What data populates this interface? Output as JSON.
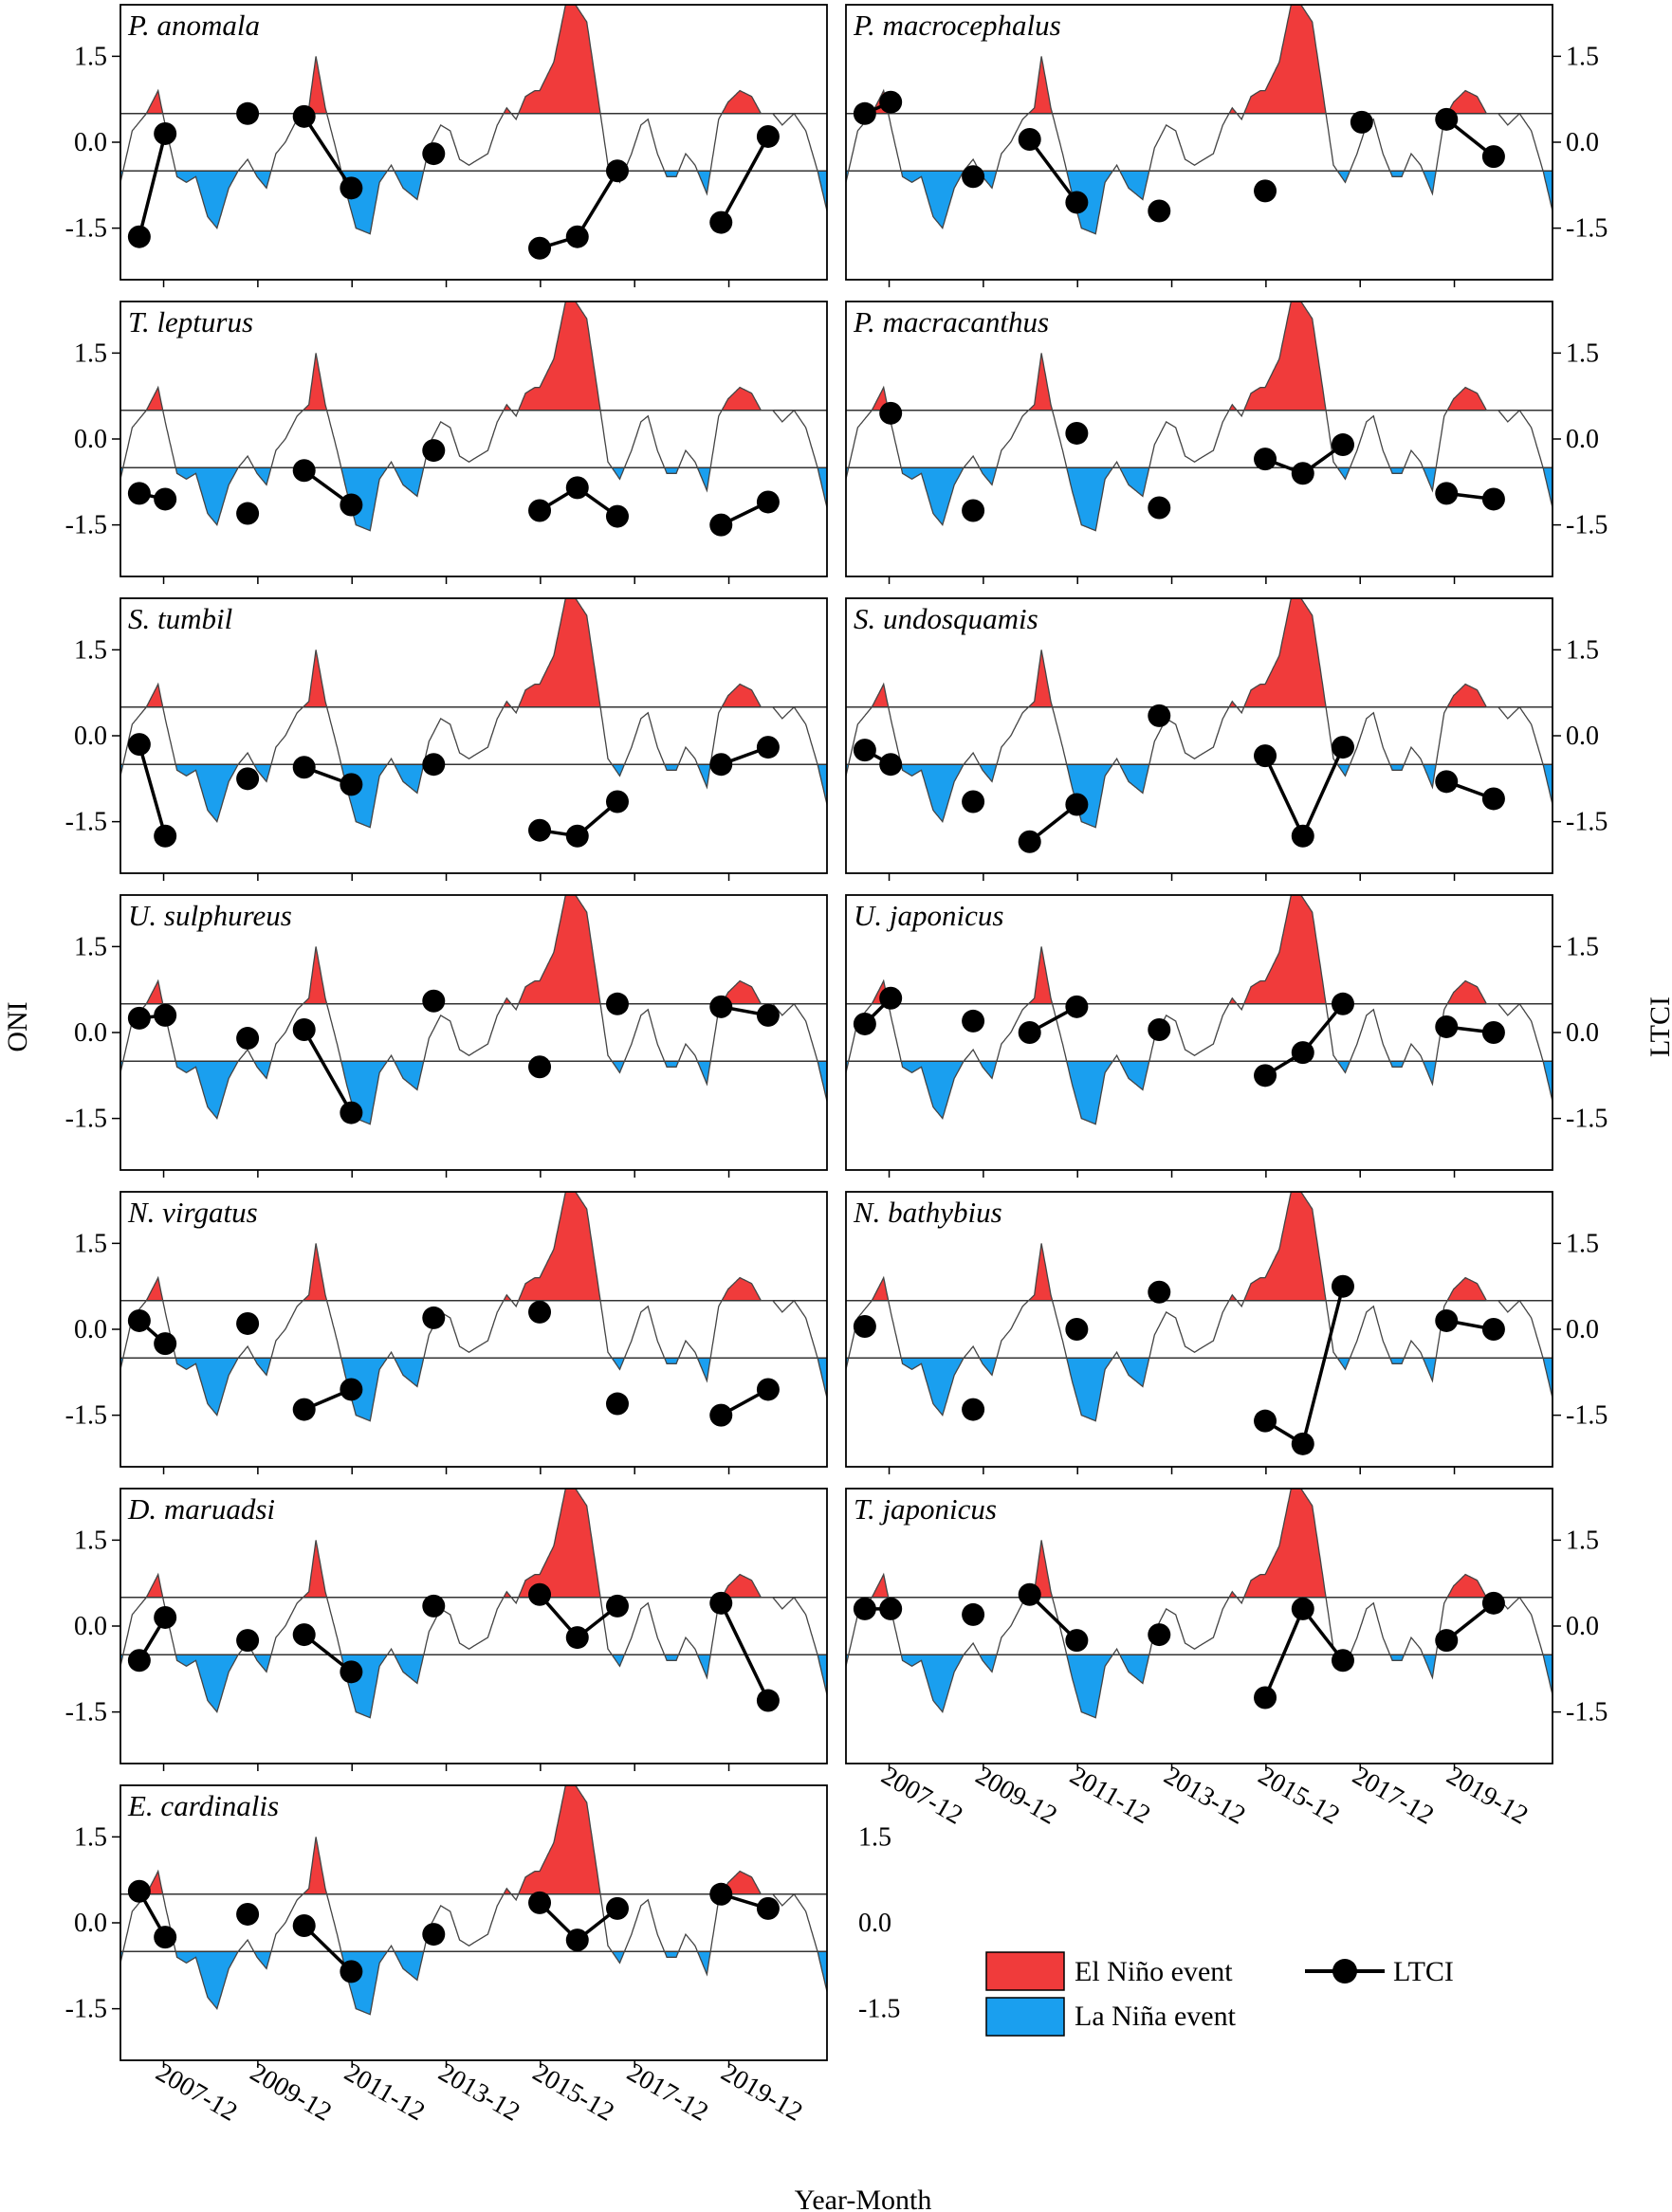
{
  "figure": {
    "y_axis_left_title": "ONI",
    "y_axis_right_title": "LTCI",
    "x_axis_title": "Year-Month",
    "colors": {
      "el_nino": "#f03b3b",
      "la_nina": "#1a9fef",
      "oni_line": "#444444",
      "ltci": "#000000",
      "frame": "#000000"
    },
    "legend": {
      "el_nino_label": "El Niño event",
      "la_nina_label": "La Niña event",
      "ltci_label": "LTCI"
    }
  },
  "chart_data": {
    "type": "line",
    "ylim": [
      -2.4,
      2.4
    ],
    "ylim_ltci": [
      -2.4,
      2.4
    ],
    "oni_thresholds": [
      0.5,
      -0.5
    ],
    "y_ticks": [
      "1.5",
      "0.0",
      "-1.5"
    ],
    "y_tick_values": [
      1.5,
      0.0,
      -1.5
    ],
    "x_ticks": [
      "2007-12",
      "2009-12",
      "2011-12",
      "2013-12",
      "2015-12",
      "2017-12",
      "2019-12"
    ],
    "x_tick_times": [
      2007.917,
      2009.917,
      2011.917,
      2013.917,
      2015.917,
      2017.917,
      2019.917
    ],
    "xlim": [
      2007.0,
      2022.0
    ],
    "oni_series": {
      "name": "ONI",
      "t": [
        2007.0,
        2007.25,
        2007.55,
        2007.8,
        2007.95,
        2008.2,
        2008.4,
        2008.6,
        2008.85,
        2009.05,
        2009.3,
        2009.5,
        2009.7,
        2009.9,
        2010.1,
        2010.3,
        2010.5,
        2010.75,
        2011.0,
        2011.15,
        2011.35,
        2011.6,
        2011.8,
        2012.0,
        2012.3,
        2012.5,
        2012.75,
        2013.0,
        2013.3,
        2013.55,
        2013.8,
        2014.0,
        2014.2,
        2014.4,
        2014.6,
        2014.8,
        2015.0,
        2015.2,
        2015.4,
        2015.6,
        2015.8,
        2015.9,
        2016.2,
        2016.5,
        2016.9,
        2017.1,
        2017.35,
        2017.6,
        2017.85,
        2018.05,
        2018.2,
        2018.4,
        2018.6,
        2018.8,
        2019.0,
        2019.2,
        2019.45,
        2019.7,
        2019.9,
        2020.15,
        2020.4,
        2020.6,
        2020.85,
        2021.05,
        2021.3,
        2021.55,
        2021.8,
        2022.0
      ],
      "values": [
        -0.7,
        0.2,
        0.5,
        0.9,
        0.3,
        -0.6,
        -0.7,
        -0.6,
        -1.3,
        -1.5,
        -0.8,
        -0.5,
        -0.3,
        -0.6,
        -0.8,
        -0.2,
        0.0,
        0.4,
        0.6,
        1.5,
        0.6,
        -0.2,
        -0.9,
        -1.5,
        -1.6,
        -0.7,
        -0.4,
        -0.8,
        -1.0,
        -0.1,
        0.3,
        0.2,
        -0.3,
        -0.4,
        -0.3,
        -0.2,
        0.3,
        0.6,
        0.4,
        0.8,
        0.9,
        0.9,
        1.4,
        2.6,
        2.1,
        1.0,
        -0.4,
        -0.7,
        -0.2,
        0.3,
        0.4,
        -0.2,
        -0.6,
        -0.6,
        -0.2,
        -0.4,
        -0.9,
        0.4,
        0.7,
        0.9,
        0.8,
        0.5,
        0.5,
        0.3,
        0.5,
        0.2,
        -0.5,
        -1.2
      ]
    },
    "ltci_times": [
      2007.4,
      2007.95,
      2008.7,
      2009.7,
      2010.4,
      2010.9,
      2011.9,
      2012.65,
      2013.65,
      2014.8,
      2015.9,
      2016.7,
      2017.55,
      2017.95,
      2018.55,
      2019.75,
      2020.75
    ],
    "panels": [
      {
        "name": "P. anomala",
        "ltci": [
          -1.65,
          0.15,
          null,
          0.5,
          null,
          0.45,
          -0.8,
          null,
          -0.2,
          null,
          -1.85,
          -1.65,
          -0.5,
          null,
          null,
          -1.4,
          0.1
        ]
      },
      {
        "name": "P. macrocephalus",
        "ltci": [
          0.5,
          0.7,
          null,
          -0.6,
          null,
          0.05,
          -1.05,
          null,
          -1.2,
          null,
          -0.85,
          null,
          null,
          0.35,
          null,
          0.4,
          -0.25
        ]
      },
      {
        "name": "T. lepturus",
        "ltci": [
          -0.95,
          -1.05,
          null,
          -1.3,
          null,
          -0.55,
          -1.15,
          null,
          -0.2,
          null,
          -1.25,
          -0.85,
          -1.35,
          null,
          null,
          -1.5,
          -1.1
        ]
      },
      {
        "name": "P. macracanthus",
        "ltci": [
          null,
          0.45,
          null,
          -1.25,
          null,
          null,
          0.1,
          null,
          -1.2,
          null,
          -0.35,
          -0.6,
          -0.1,
          null,
          null,
          -0.95,
          -1.05
        ]
      },
      {
        "name": "S. tumbil",
        "ltci": [
          -0.15,
          -1.75,
          null,
          -0.75,
          null,
          -0.55,
          -0.85,
          null,
          -0.5,
          null,
          -1.65,
          -1.75,
          -1.15,
          null,
          null,
          -0.5,
          -0.2
        ]
      },
      {
        "name": "S. undosquamis",
        "ltci": [
          -0.25,
          -0.5,
          null,
          -1.15,
          null,
          -1.85,
          -1.2,
          null,
          0.35,
          null,
          -0.35,
          -1.75,
          -0.2,
          null,
          null,
          -0.8,
          -1.1
        ]
      },
      {
        "name": "U. sulphureus",
        "ltci": [
          0.25,
          0.3,
          null,
          -0.1,
          null,
          0.05,
          -1.4,
          null,
          0.55,
          null,
          -0.6,
          null,
          0.5,
          null,
          null,
          0.45,
          0.3
        ]
      },
      {
        "name": "U. japonicus",
        "ltci": [
          0.15,
          0.6,
          null,
          0.2,
          null,
          0.0,
          0.45,
          null,
          0.05,
          null,
          -0.75,
          -0.35,
          0.5,
          null,
          null,
          0.1,
          0.0
        ]
      },
      {
        "name": "N. virgatus",
        "ltci": [
          0.15,
          -0.25,
          null,
          0.1,
          null,
          -1.4,
          -1.05,
          null,
          0.2,
          null,
          0.3,
          null,
          -1.3,
          null,
          null,
          -1.5,
          -1.05
        ]
      },
      {
        "name": "N. bathybius",
        "ltci": [
          0.05,
          null,
          null,
          -1.4,
          null,
          null,
          0.0,
          null,
          0.65,
          null,
          -1.6,
          -2.0,
          0.75,
          null,
          null,
          0.15,
          0.0
        ]
      },
      {
        "name": "D. maruadsi",
        "ltci": [
          -0.6,
          0.15,
          null,
          -0.25,
          null,
          -0.15,
          -0.8,
          null,
          0.35,
          null,
          0.55,
          -0.2,
          0.35,
          null,
          null,
          0.4,
          -1.3
        ]
      },
      {
        "name": "T. japonicus",
        "ltci": [
          0.3,
          0.3,
          null,
          0.2,
          null,
          0.55,
          -0.25,
          null,
          -0.15,
          null,
          -1.25,
          0.3,
          -0.6,
          null,
          null,
          -0.25,
          0.4
        ]
      },
      {
        "name": "E. cardinalis",
        "ltci": [
          0.55,
          -0.25,
          null,
          0.15,
          null,
          -0.05,
          -0.85,
          null,
          -0.2,
          null,
          0.35,
          -0.3,
          0.25,
          null,
          null,
          0.5,
          0.25
        ]
      }
    ]
  }
}
